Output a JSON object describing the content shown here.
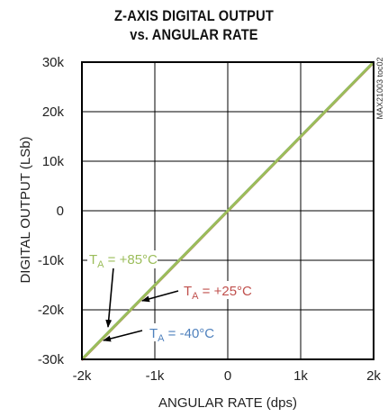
{
  "chart_data": {
    "type": "line",
    "title": "Z-AXIS DIGITAL OUTPUT",
    "subtitle": "vs. ANGULAR RATE",
    "xlabel": "ANGULAR RATE (dps)",
    "ylabel": "DIGITAL OUTPUT (LSb)",
    "xlim": [
      -2000,
      2000
    ],
    "ylim": [
      -30000,
      30000
    ],
    "x_ticks": [
      -2000,
      -1000,
      0,
      1000,
      2000
    ],
    "x_tick_labels": [
      "-2k",
      "-1k",
      "0",
      "1k",
      "2k"
    ],
    "y_ticks": [
      30000,
      20000,
      10000,
      0,
      -10000,
      -20000,
      -30000
    ],
    "y_tick_labels": [
      "30k",
      "20k",
      "10k",
      "0",
      "-10k",
      "-20k",
      "-30k"
    ],
    "grid": true,
    "watermark": "MAX21003 toc02",
    "series": [
      {
        "name": "T_A = +85°C",
        "color": "#9bbd5a",
        "x": [
          -2000,
          2000
        ],
        "y": [
          -30000,
          30000
        ]
      },
      {
        "name": "T_A = +25°C",
        "color": "#c0504d",
        "x": [
          -2000,
          2000
        ],
        "y": [
          -30000,
          30000
        ]
      },
      {
        "name": "T_A = -40°C",
        "color": "#4f81bd",
        "x": [
          -2000,
          2000
        ],
        "y": [
          -30000,
          30000
        ]
      }
    ],
    "annotations": [
      {
        "series": 0,
        "t": "T",
        "sub": "A",
        "rest": " = +85°C",
        "color": "#9bbd5a"
      },
      {
        "series": 1,
        "t": "T",
        "sub": "A",
        "rest": " = +25°C",
        "color": "#c0504d"
      },
      {
        "series": 2,
        "t": "T",
        "sub": "A",
        "rest": " = -40°C",
        "color": "#4f81bd"
      }
    ]
  }
}
